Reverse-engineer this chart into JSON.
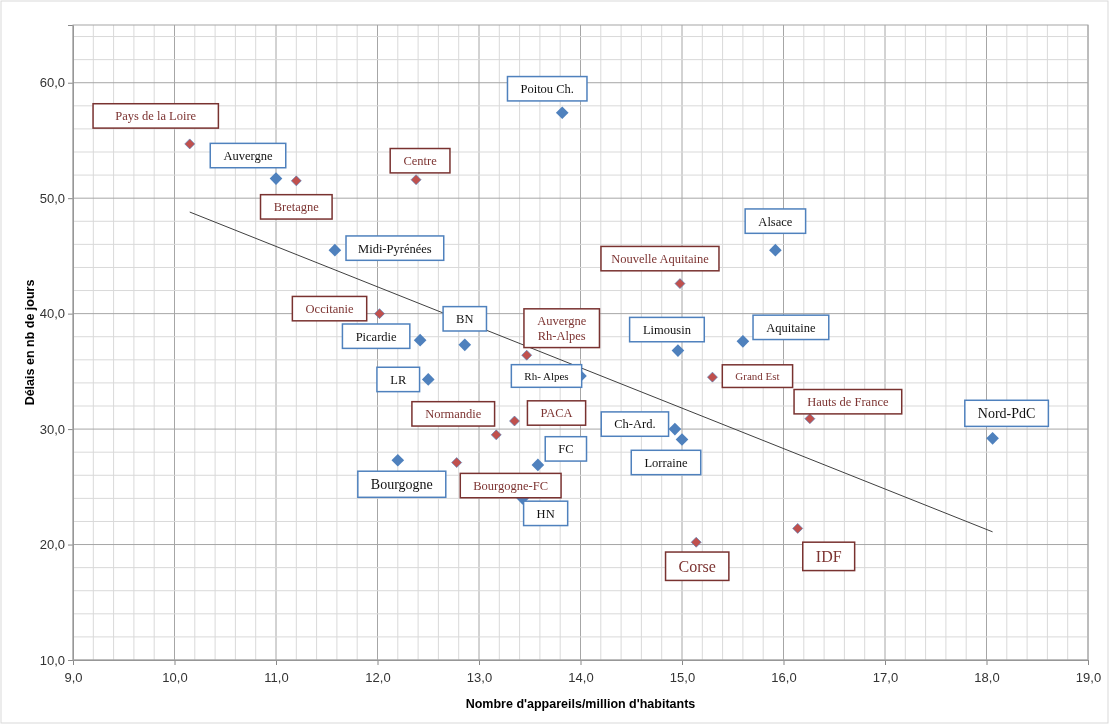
{
  "chart_data": {
    "type": "scatter",
    "xlabel": "Nombre d'appareils/million d'habitants",
    "ylabel": "Délais en nb de jours",
    "xlim": [
      9,
      19
    ],
    "ylim": [
      10,
      65
    ],
    "xticks": [
      {
        "value": 9,
        "label": "9,0"
      },
      {
        "value": 10,
        "label": "10,0"
      },
      {
        "value": 11,
        "label": "11,0"
      },
      {
        "value": 12,
        "label": "12,0"
      },
      {
        "value": 13,
        "label": "13,0"
      },
      {
        "value": 14,
        "label": "14,0"
      },
      {
        "value": 15,
        "label": "15,0"
      },
      {
        "value": 16,
        "label": "16,0"
      },
      {
        "value": 17,
        "label": "17,0"
      },
      {
        "value": 18,
        "label": "18,0"
      },
      {
        "value": 19,
        "label": "19,0"
      }
    ],
    "yticks": [
      {
        "value": 10,
        "label": "10,0"
      },
      {
        "value": 20,
        "label": "20,0"
      },
      {
        "value": 30,
        "label": "30,0"
      },
      {
        "value": 40,
        "label": "40,0"
      },
      {
        "value": 50,
        "label": "50,0"
      },
      {
        "value": 60,
        "label": "60,0"
      }
    ],
    "grid": true,
    "series": [
      {
        "marker": "diamond",
        "color": "#4f81bd",
        "x": [
          13.82,
          11.0,
          11.58,
          12.42,
          12.86,
          12.5,
          14.0,
          13.58,
          13.43,
          12.2,
          14.96,
          15.6,
          15.92,
          14.93,
          15.0,
          18.06
        ],
        "values": [
          57.4,
          51.7,
          45.5,
          37.7,
          37.3,
          34.3,
          34.6,
          26.9,
          24.0,
          27.3,
          36.8,
          37.6,
          45.5,
          30.0,
          29.1,
          29.2
        ],
        "value_labels": [
          "Poitou Ch.",
          "Auvergne",
          "Midi-Pyrénées",
          "Picardie",
          "BN",
          "LR",
          "Rh- Alpes",
          "FC",
          "HN",
          "Bourgogne",
          "Limousin",
          "Aquitaine",
          "Alsace",
          "Ch-Ard.",
          "Lorraine",
          "Nord-PdC"
        ]
      },
      {
        "marker": "diamond",
        "color": "#c0504d",
        "x": [
          10.15,
          11.2,
          12.38,
          12.02,
          13.47,
          14.98,
          15.3,
          16.26,
          13.17,
          13.35,
          12.78,
          15.14,
          16.14
        ],
        "values": [
          54.7,
          51.5,
          51.6,
          40.0,
          36.4,
          42.6,
          34.5,
          30.9,
          29.5,
          30.7,
          27.1,
          20.2,
          21.4
        ],
        "value_labels": [
          "Pays de la Loire",
          "Bretagne",
          "Centre",
          "Occitanie",
          "Auvergne\nRh-Alpes",
          "Nouvelle Aquitaine",
          "Grand Est",
          "Hauts de France",
          "Normandie",
          "PACA",
          "Bourgogne-FC",
          "Corse",
          "IDF"
        ]
      },
      {
        "type": "line",
        "marker": "none",
        "color": "#404040",
        "x": [
          10.15,
          18.06
        ],
        "values": [
          48.8,
          21.1
        ]
      }
    ]
  }
}
